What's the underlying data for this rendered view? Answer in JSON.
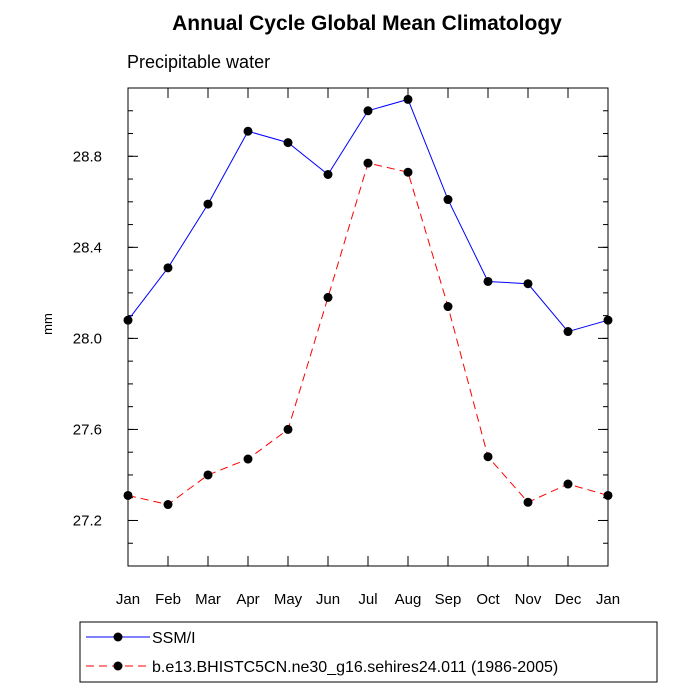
{
  "chart_data": {
    "type": "line",
    "title": "Annual Cycle Global Mean Climatology",
    "subtitle": "Precipitable water",
    "xlabel": "",
    "ylabel": "mm",
    "categories": [
      "Jan",
      "Feb",
      "Mar",
      "Apr",
      "May",
      "Jun",
      "Jul",
      "Aug",
      "Sep",
      "Oct",
      "Nov",
      "Dec",
      "Jan"
    ],
    "ylim": [
      27.0,
      29.1
    ],
    "yticks": [
      27.2,
      27.6,
      28.0,
      28.4,
      28.8
    ],
    "ytick_labels": [
      "27.2",
      "27.6",
      "28.0",
      "28.4",
      "28.8"
    ],
    "grid": false,
    "legend_placement": "bottom",
    "series": [
      {
        "name": "SSM/I",
        "color": "#0000ff",
        "line_style": "solid",
        "values": [
          28.08,
          28.31,
          28.59,
          28.91,
          28.86,
          28.72,
          29.0,
          29.05,
          28.61,
          28.25,
          28.24,
          28.03,
          28.08
        ]
      },
      {
        "name": "b.e13.BHISTC5CN.ne30_g16.sehires24.011 (1986-2005)",
        "color": "#ff0000",
        "line_style": "dashed",
        "values": [
          27.31,
          27.27,
          27.4,
          27.47,
          27.6,
          28.18,
          28.77,
          28.73,
          28.14,
          27.48,
          27.28,
          27.36,
          27.31
        ]
      }
    ]
  }
}
